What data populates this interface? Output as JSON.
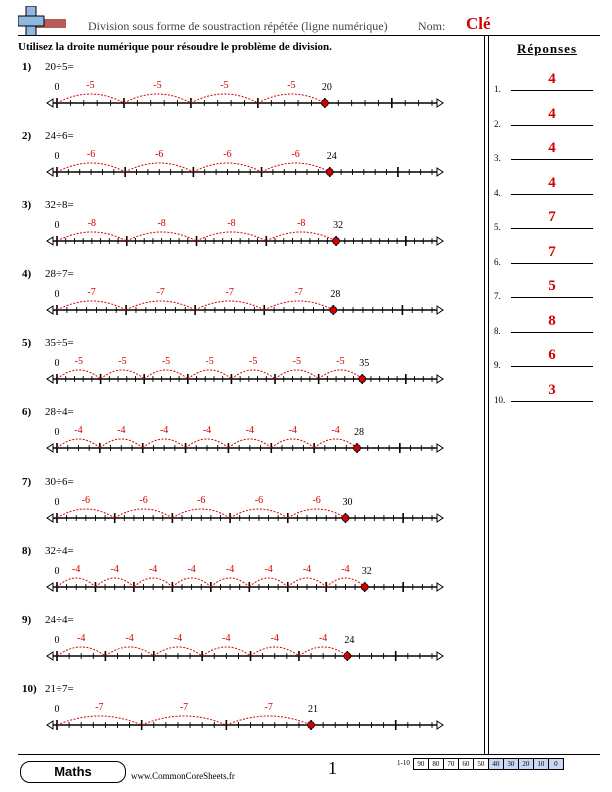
{
  "header": {
    "title": "Division sous forme de soustraction répétée (ligne numérique)",
    "nom_label": "Nom:",
    "key_label": "Clé",
    "logo_icon": "plus-sign-icon"
  },
  "instructions": "Utilisez la droite numérique pour résoudre le problème de division.",
  "colors": {
    "accent": "#d40000",
    "logo_blue": "#8fb7e0",
    "logo_red": "#b85a5a"
  },
  "answers_title": "Réponses",
  "answers": [
    {
      "num": "1.",
      "value": "4"
    },
    {
      "num": "2.",
      "value": "4"
    },
    {
      "num": "3.",
      "value": "4"
    },
    {
      "num": "4.",
      "value": "4"
    },
    {
      "num": "5.",
      "value": "7"
    },
    {
      "num": "6.",
      "value": "7"
    },
    {
      "num": "7.",
      "value": "5"
    },
    {
      "num": "8.",
      "value": "8"
    },
    {
      "num": "9.",
      "value": "6"
    },
    {
      "num": "10.",
      "value": "3"
    }
  ],
  "problems": [
    {
      "num": "1)",
      "text": "20÷5=",
      "dividend": 20,
      "divisor": 5,
      "hop_label": "-5",
      "end_label": "20",
      "zero_label": "0"
    },
    {
      "num": "2)",
      "text": "24÷6=",
      "dividend": 24,
      "divisor": 6,
      "hop_label": "-6",
      "end_label": "24",
      "zero_label": "0"
    },
    {
      "num": "3)",
      "text": "32÷8=",
      "dividend": 32,
      "divisor": 8,
      "hop_label": "-8",
      "end_label": "32",
      "zero_label": "0"
    },
    {
      "num": "4)",
      "text": "28÷7=",
      "dividend": 28,
      "divisor": 7,
      "hop_label": "-7",
      "end_label": "28",
      "zero_label": "0"
    },
    {
      "num": "5)",
      "text": "35÷5=",
      "dividend": 35,
      "divisor": 5,
      "hop_label": "-5",
      "end_label": "35",
      "zero_label": "0"
    },
    {
      "num": "6)",
      "text": "28÷4=",
      "dividend": 28,
      "divisor": 4,
      "hop_label": "-4",
      "end_label": "28",
      "zero_label": "0"
    },
    {
      "num": "7)",
      "text": "30÷6=",
      "dividend": 30,
      "divisor": 6,
      "hop_label": "-6",
      "end_label": "30",
      "zero_label": "0"
    },
    {
      "num": "8)",
      "text": "32÷4=",
      "dividend": 32,
      "divisor": 4,
      "hop_label": "-4",
      "end_label": "32",
      "zero_label": "0"
    },
    {
      "num": "9)",
      "text": "24÷4=",
      "dividend": 24,
      "divisor": 4,
      "hop_label": "-4",
      "end_label": "24",
      "zero_label": "0"
    },
    {
      "num": "10)",
      "text": "21÷7=",
      "dividend": 21,
      "divisor": 7,
      "hop_label": "-7",
      "end_label": "21",
      "zero_label": "0"
    }
  ],
  "footer": {
    "brand": "Maths",
    "site": "www.CommonCoreSheets.fr",
    "page": "1",
    "score_label": "1-10",
    "scores": [
      "90",
      "80",
      "70",
      "60",
      "50",
      "40",
      "30",
      "20",
      "10",
      "0"
    ],
    "highlighted_scores": [
      "40",
      "30",
      "20",
      "10",
      "0"
    ]
  }
}
